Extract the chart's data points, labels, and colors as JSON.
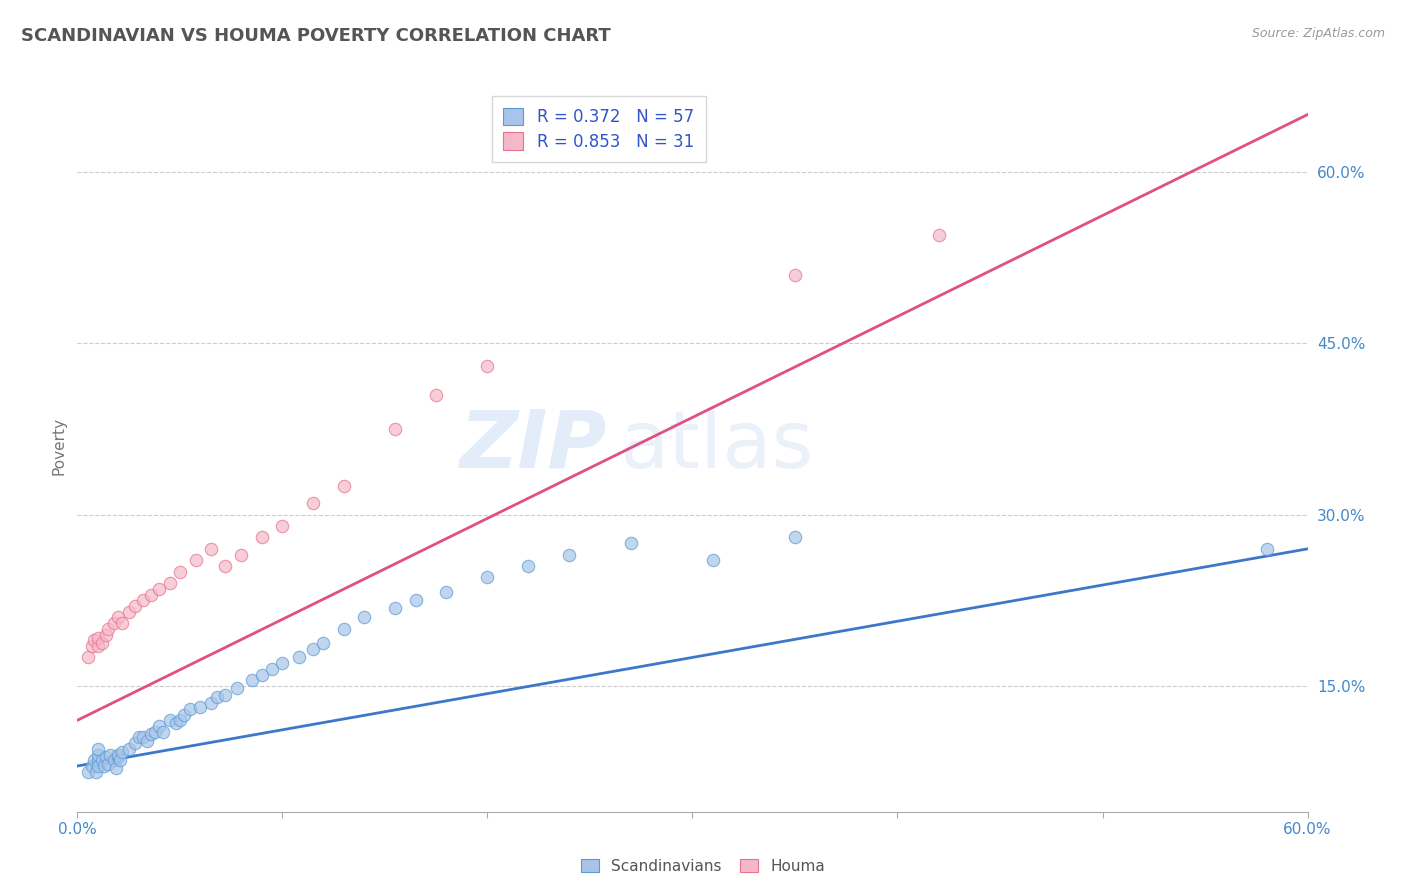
{
  "title": "SCANDINAVIAN VS HOUMA POVERTY CORRELATION CHART",
  "source_text": "Source: ZipAtlas.com",
  "ylabel": "Poverty",
  "xlim": [
    0.0,
    0.6
  ],
  "ylim": [
    0.04,
    0.68
  ],
  "yticks": [
    0.15,
    0.3,
    0.45,
    0.6
  ],
  "yticklabels": [
    "15.0%",
    "30.0%",
    "45.0%",
    "60.0%"
  ],
  "blue_fill": "#a8c4e8",
  "blue_edge": "#5b9bd5",
  "blue_line": "#3c78c8",
  "pink_fill": "#f5b8c8",
  "pink_edge": "#e87090",
  "pink_line": "#e05080",
  "legend_color": "#3355cc",
  "R_blue": 0.372,
  "N_blue": 57,
  "R_pink": 0.853,
  "N_pink": 31,
  "watermark": "ZIPatlas",
  "bg": "#ffffff",
  "grid_color": "#cccccc",
  "blue_x": [
    0.005,
    0.007,
    0.008,
    0.009,
    0.01,
    0.01,
    0.01,
    0.01,
    0.012,
    0.013,
    0.014,
    0.015,
    0.016,
    0.018,
    0.019,
    0.02,
    0.02,
    0.021,
    0.022,
    0.025,
    0.028,
    0.03,
    0.032,
    0.034,
    0.036,
    0.038,
    0.04,
    0.042,
    0.045,
    0.048,
    0.05,
    0.052,
    0.055,
    0.06,
    0.065,
    0.068,
    0.072,
    0.078,
    0.085,
    0.09,
    0.095,
    0.1,
    0.108,
    0.115,
    0.12,
    0.13,
    0.14,
    0.155,
    0.165,
    0.18,
    0.2,
    0.22,
    0.24,
    0.27,
    0.31,
    0.35,
    0.58
  ],
  "blue_y": [
    0.075,
    0.08,
    0.085,
    0.075,
    0.085,
    0.08,
    0.09,
    0.095,
    0.085,
    0.08,
    0.088,
    0.082,
    0.09,
    0.085,
    0.078,
    0.088,
    0.09,
    0.085,
    0.092,
    0.095,
    0.1,
    0.105,
    0.105,
    0.102,
    0.108,
    0.11,
    0.115,
    0.11,
    0.12,
    0.118,
    0.12,
    0.125,
    0.13,
    0.132,
    0.135,
    0.14,
    0.142,
    0.148,
    0.155,
    0.16,
    0.165,
    0.17,
    0.175,
    0.182,
    0.188,
    0.2,
    0.21,
    0.218,
    0.225,
    0.232,
    0.245,
    0.255,
    0.265,
    0.275,
    0.26,
    0.28,
    0.27
  ],
  "pink_x": [
    0.005,
    0.007,
    0.008,
    0.01,
    0.01,
    0.012,
    0.014,
    0.015,
    0.018,
    0.02,
    0.022,
    0.025,
    0.028,
    0.032,
    0.036,
    0.04,
    0.045,
    0.05,
    0.058,
    0.065,
    0.072,
    0.08,
    0.09,
    0.1,
    0.115,
    0.13,
    0.155,
    0.175,
    0.2,
    0.35,
    0.42
  ],
  "pink_y": [
    0.175,
    0.185,
    0.19,
    0.185,
    0.192,
    0.188,
    0.195,
    0.2,
    0.205,
    0.21,
    0.205,
    0.215,
    0.22,
    0.225,
    0.23,
    0.235,
    0.24,
    0.25,
    0.26,
    0.27,
    0.255,
    0.265,
    0.28,
    0.29,
    0.31,
    0.325,
    0.375,
    0.405,
    0.43,
    0.51,
    0.545
  ]
}
